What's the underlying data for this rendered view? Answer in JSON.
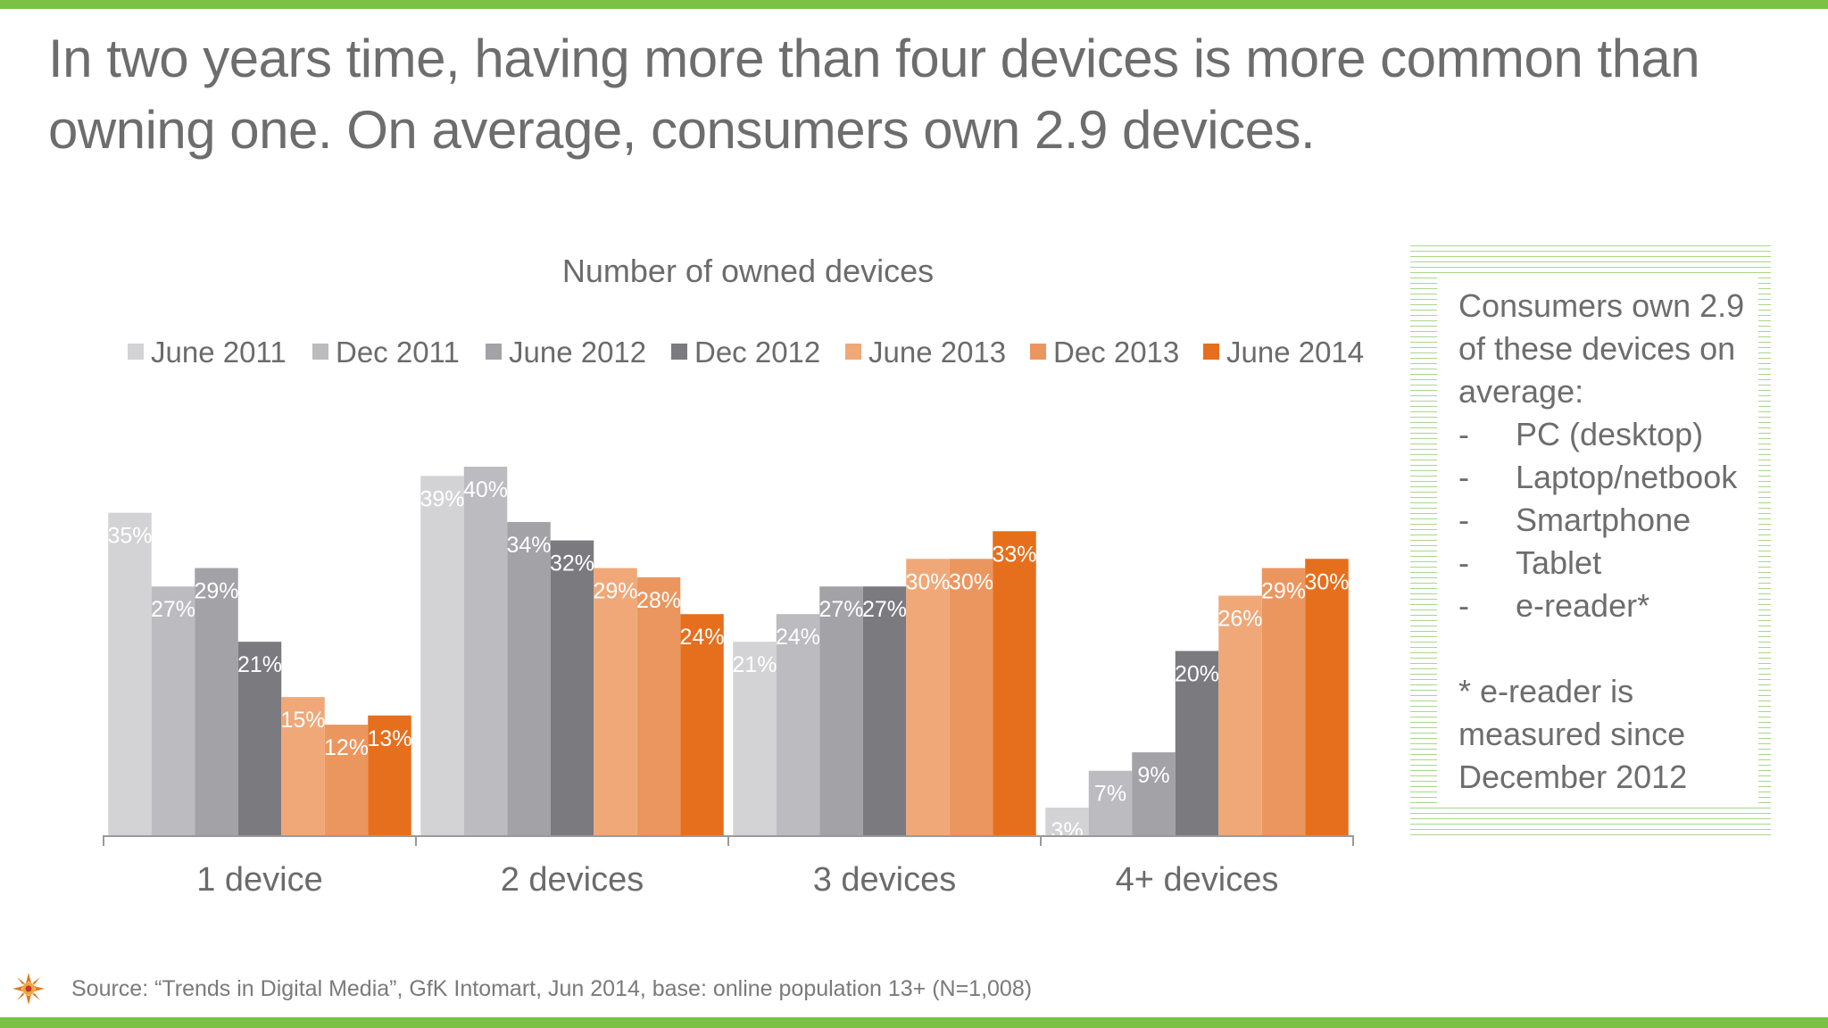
{
  "headline": "In two years time, having more than four devices is more common than owning one. On average, consumers own 2.9 devices.",
  "source": "Source: “Trends in Digital Media”, GfK Intomart, Jun 2014, base: online population 13+ (N=1,008)",
  "side_box": {
    "title": "Consumers own 2.9 of these devices on average:",
    "items": [
      {
        "dash": "-",
        "label": "PC (desktop)"
      },
      {
        "dash": "-",
        "label": "Laptop/netbook"
      },
      {
        "dash": "-",
        "label": "Smartphone"
      },
      {
        "dash": "-",
        "label": "Tablet"
      },
      {
        "dash": "-",
        "label": "e-reader*"
      }
    ],
    "note": "* e-reader is measured since December 2012"
  },
  "chart_data": {
    "type": "bar",
    "title": "Number of owned devices",
    "categories": [
      "1 device",
      "2 devices",
      "3 devices",
      "4+ devices"
    ],
    "ylim": [
      0,
      40
    ],
    "legend_position": "top",
    "grid": false,
    "series": [
      {
        "name": "June 2011",
        "color": "#d3d3d5",
        "values": [
          35,
          39,
          21,
          3
        ]
      },
      {
        "name": "Dec 2011",
        "color": "#bcbbbf",
        "values": [
          27,
          40,
          24,
          7
        ]
      },
      {
        "name": "June 2012",
        "color": "#a3a2a6",
        "values": [
          29,
          34,
          27,
          9
        ]
      },
      {
        "name": "Dec 2012",
        "color": "#7b7a7e",
        "values": [
          21,
          32,
          27,
          20
        ]
      },
      {
        "name": "June 2013",
        "color": "#f0a878",
        "values": [
          15,
          29,
          30,
          26
        ]
      },
      {
        "name": "Dec 2013",
        "color": "#eb965f",
        "values": [
          12,
          28,
          30,
          29
        ]
      },
      {
        "name": "June 2014",
        "color": "#e66f1d",
        "values": [
          13,
          24,
          33,
          30
        ]
      }
    ],
    "value_suffix": "%"
  }
}
